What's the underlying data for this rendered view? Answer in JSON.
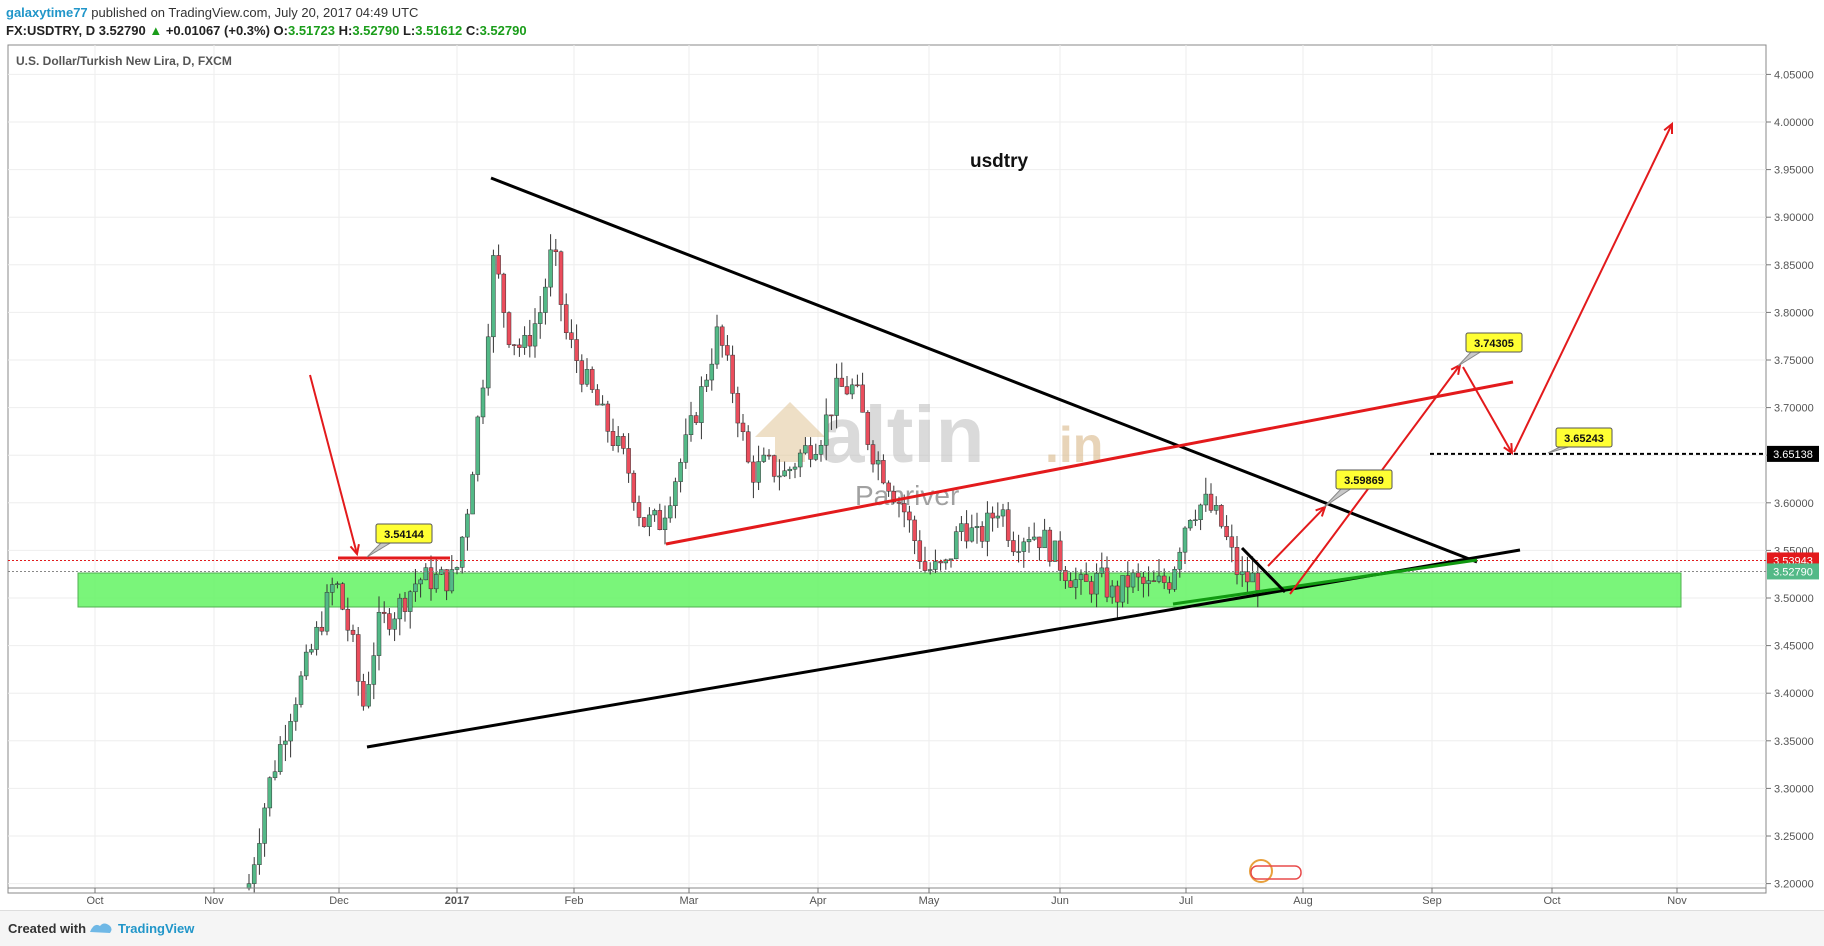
{
  "header": {
    "author": "galaxytime77",
    "published": "published on TradingView.com, July 20, 2017 04:49 UTC",
    "symbol": "FX:USDTRY, D",
    "last": "3.52790",
    "change": "+0.01067 (+0.3%)",
    "o_label": "O:",
    "o_value": "3.51723",
    "h_label": "H:",
    "h_value": "3.52790",
    "l_label": "L:",
    "l_value": "3.51612",
    "c_label": "C:",
    "c_value": "3.52790"
  },
  "footer": {
    "created": "Created with",
    "brand": "TradingView"
  },
  "colors": {
    "up": "#53b987",
    "down": "#eb4d5c",
    "trend": "#000000",
    "redline": "#e31a1c",
    "zone": "#6cf56c",
    "callout": "#ffff33"
  },
  "chart_data": {
    "type": "candlestick",
    "title": "U.S. Dollar/Turkish New Lira, D, FXCM",
    "annotation_text": "usdtry",
    "watermark_main": "altin",
    "watermark_domain": ".in",
    "watermark_sub": "Panriver",
    "x_ticks": [
      "Oct",
      "Nov",
      "Dec",
      "2017",
      "Feb",
      "Mar",
      "Apr",
      "May",
      "Jun",
      "Jul",
      "Aug",
      "Sep",
      "Oct",
      "Nov"
    ],
    "y_ticks": [
      "4.05000",
      "4.00000",
      "3.95000",
      "3.90000",
      "3.85000",
      "3.80000",
      "3.75000",
      "3.70000",
      "3.65000",
      "3.60000",
      "3.55000",
      "3.50000",
      "3.45000",
      "3.40000",
      "3.35000",
      "3.30000",
      "3.25000",
      "3.20000"
    ],
    "ylim": [
      3.195,
      4.08
    ],
    "price_labels": [
      {
        "text": "3.65138",
        "value": 3.65138,
        "color": "#000000"
      },
      {
        "text": "3.53943",
        "value": 3.53943,
        "color": "#e31a1c"
      },
      {
        "text": "3.52790",
        "value": 3.5279,
        "color": "#53b987"
      }
    ],
    "callouts": [
      "3.54144",
      "3.59869",
      "3.74305",
      "3.65243"
    ]
  }
}
